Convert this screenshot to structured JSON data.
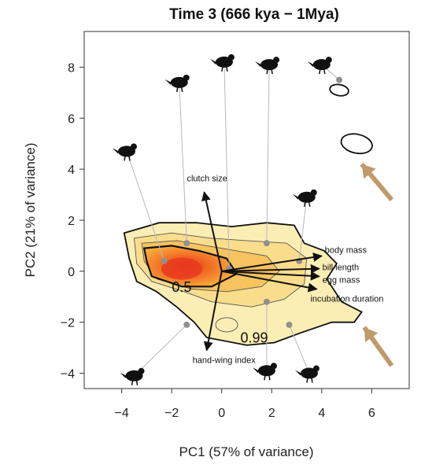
{
  "chart_data": {
    "type": "scatter",
    "title": "Time 3 (666 kya − 1Mya)",
    "xlabel": "PC1 (57% of variance)",
    "ylabel": "PC2 (21% of variance)",
    "xlim": [
      -5.5,
      7.5
    ],
    "ylim": [
      -4.6,
      9.4
    ],
    "xticks": [
      -4,
      -2,
      0,
      2,
      4,
      6
    ],
    "yticks": [
      -4,
      -2,
      0,
      2,
      4,
      6,
      8
    ],
    "xtick_labels": [
      "−4",
      "−2",
      "0",
      "2",
      "4",
      "6"
    ],
    "ytick_labels": [
      "−4",
      "−2",
      "0",
      "2",
      "4",
      "6",
      "8"
    ],
    "grid": false,
    "points": [
      {
        "x": -2.3,
        "y": 0.4
      },
      {
        "x": -1.4,
        "y": 1.1
      },
      {
        "x": 0.3,
        "y": 0.1
      },
      {
        "x": 1.8,
        "y": 1.1
      },
      {
        "x": 3.1,
        "y": 0.4
      },
      {
        "x": 4.7,
        "y": 7.5
      },
      {
        "x": 1.8,
        "y": -1.2
      },
      {
        "x": 2.7,
        "y": -2.1
      },
      {
        "x": -1.4,
        "y": -2.1
      }
    ],
    "vectors": [
      {
        "label": "clutch size",
        "x": -0.7,
        "y": 3.1
      },
      {
        "label": "body mass",
        "x": 4.0,
        "y": 0.6
      },
      {
        "label": "bill length",
        "x": 3.9,
        "y": 0.1
      },
      {
        "label": "egg mass",
        "x": 3.9,
        "y": -0.2
      },
      {
        "label": "incubation duration",
        "x": 3.8,
        "y": -0.7
      },
      {
        "label": "hand-wing index",
        "x": -0.6,
        "y": -3.1
      }
    ],
    "contour_labels": [
      {
        "text": "0.5",
        "x": -1.6,
        "y": -0.8
      },
      {
        "text": "0.99",
        "x": 1.3,
        "y": -2.8
      }
    ],
    "colors": {
      "density_high": "#e83a1e",
      "density_mid": "#f6a23a",
      "density_low": "#fbeeb4",
      "contour": "#555555",
      "arrow": "#c09a6b",
      "point": "#909090"
    },
    "annotation_icons": [
      "bird-silhouette"
    ]
  }
}
